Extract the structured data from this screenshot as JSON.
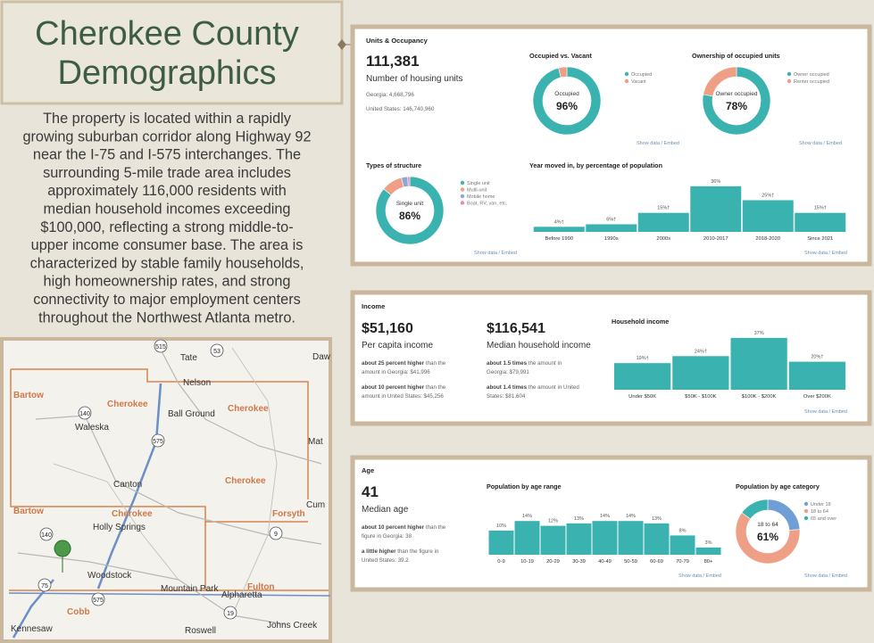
{
  "header": {
    "title_lines": [
      "Cherokee County",
      "Demographics"
    ]
  },
  "intro": {
    "lines": [
      "The property is located within a rapidly",
      "growing suburban corridor along Highway 92",
      "near the I-75 and I-575 interchanges. The",
      "surrounding 5-mile trade area includes",
      "approximately 116,000 residents with",
      "median household incomes exceeding",
      "$100,000, reflecting a strong middle-to-",
      "upper income consumer base. The area is",
      "characterized by stable family households,",
      "high homeownership rates, and strong",
      "connectivity to major employment centers",
      "throughout the Northwest Atlanta metro."
    ]
  },
  "map": {
    "counties": [
      "Bartow",
      "Bartow",
      "Cherokee",
      "Cherokee",
      "Cherokee",
      "Cherokee",
      "Forsyth",
      "Fulton",
      "Cobb"
    ],
    "places": [
      "Tate",
      "Nelson",
      "Ball Ground",
      "Waleska",
      "Canton",
      "Holly Springs",
      "Woodstock",
      "Mountain Park",
      "Alpharetta",
      "Kennesaw",
      "Roswell",
      "Johns Creek",
      "Daw",
      "Mat",
      "Cum"
    ],
    "routes": [
      "515",
      "53",
      "140",
      "575",
      "140",
      "9",
      "19",
      "75",
      "575"
    ]
  },
  "units": {
    "title": "Units & Occupancy",
    "total": "111,381",
    "total_label": "Number of housing units",
    "georgia": "Georgia: 4,668,796",
    "us": "United States: 146,740,960",
    "occupancy": {
      "type": "pie",
      "title": "Occupied vs. Vacant",
      "categories": [
        "Occupied",
        "Vacant"
      ],
      "values": [
        96,
        4
      ],
      "colors": [
        "#3ab3b0",
        "#ef9f85"
      ],
      "center_label": "Occupied",
      "center_value_label": "96%",
      "footer": "Show data / Embed"
    },
    "ownership": {
      "type": "pie",
      "title": "Ownership of occupied units",
      "categories": [
        "Owner occupied",
        "Renter occupied"
      ],
      "values": [
        78,
        22
      ],
      "colors": [
        "#3ab3b0",
        "#ef9f85"
      ],
      "center_label": "Owner occupied",
      "center_value_label": "78%",
      "footer": "Show data / Embed"
    },
    "structure": {
      "type": "pie",
      "title": "Types of structure",
      "categories": [
        "Single unit",
        "Multi-unit",
        "Mobile home",
        "Boat, RV, van, etc."
      ],
      "values": [
        86,
        10,
        3,
        1
      ],
      "colors": [
        "#3ab3b0",
        "#ef9f85",
        "#8aa7d8",
        "#e58bb0"
      ],
      "center_label": "Single unit",
      "center_value_label": "86%",
      "footer": "Show data / Embed"
    },
    "moved": {
      "type": "bar",
      "title": "Year moved in, by percentage of population",
      "categories": [
        "Before 1990",
        "1990s",
        "2000s",
        "2010-2017",
        "2018-2020",
        "Since 2021"
      ],
      "values": [
        4,
        6,
        15,
        36,
        25,
        15
      ],
      "value_labels": [
        "4%†",
        "6%†",
        "15%†",
        "36%",
        "25%†",
        "15%†"
      ],
      "color": "#3ab3b0",
      "footer": "Show data / Embed"
    }
  },
  "income": {
    "title": "Income",
    "per_capita": "$51,160",
    "per_capita_label": "Per capita income",
    "per_capita_notes": [
      {
        "lead": "about 25 percent higher",
        "lines": [
          " than the",
          "amount in Georgia: $41,996"
        ]
      },
      {
        "lead": "about 10 percent higher",
        "lines": [
          " than the",
          "amount in United States: $45,256"
        ]
      }
    ],
    "median": "$116,541",
    "median_label": "Median household income",
    "median_notes": [
      {
        "lead": "about 1.5 times",
        "lines": [
          " the amount in",
          "Georgia: $79,991"
        ]
      },
      {
        "lead": "about 1.4 times",
        "lines": [
          " the amount in United",
          "States: $81,604"
        ]
      }
    ],
    "household": {
      "type": "bar",
      "title": "Household income",
      "categories": [
        "Under $50K",
        "$50K - $100K",
        "$100K - $200K",
        "Over $200K"
      ],
      "values": [
        19,
        24,
        37,
        20
      ],
      "value_labels": [
        "19%†",
        "24%†",
        "37%",
        "20%†"
      ],
      "color": "#3ab3b0",
      "footer": "Show data / Embed"
    }
  },
  "age": {
    "title": "Age",
    "median": "41",
    "median_label": "Median age",
    "notes": [
      {
        "lead": "about 10 percent higher",
        "lines": [
          " than the",
          "figure in Georgia: 38"
        ]
      },
      {
        "lead": "a little higher",
        "lines": [
          " than the figure in",
          "United States: 39.2"
        ]
      }
    ],
    "range": {
      "type": "bar",
      "title": "Population by age range",
      "categories": [
        "0-9",
        "10-19",
        "20-29",
        "30-39",
        "40-49",
        "50-59",
        "60-69",
        "70-79",
        "80+"
      ],
      "values": [
        10,
        14,
        12,
        13,
        14,
        14,
        13,
        8,
        3
      ],
      "value_labels": [
        "10%",
        "14%",
        "12%",
        "13%",
        "14%",
        "14%",
        "13%",
        "8%",
        "3%"
      ],
      "color": "#3ab3b0",
      "footer": "Show data / Embed"
    },
    "category": {
      "type": "pie",
      "title": "Population by age category",
      "categories": [
        "Under 18",
        "18 to 64",
        "65 and over"
      ],
      "values": [
        24,
        61,
        15
      ],
      "colors": [
        "#6f9fd6",
        "#ef9f85",
        "#3ab3b0"
      ],
      "center_label": "18 to 64",
      "center_value_label": "61%",
      "footer": "Show data / Embed"
    }
  }
}
